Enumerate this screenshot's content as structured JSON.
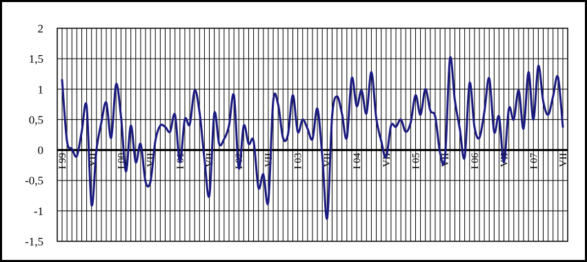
{
  "chart_data": {
    "type": "line",
    "title": "",
    "xlabel": "",
    "ylabel": "",
    "ylim": [
      -1.5,
      2
    ],
    "yticks": [
      -1.5,
      -1,
      -0.5,
      0,
      0.5,
      1,
      1.5,
      2
    ],
    "ytick_labels": [
      "-1,5",
      "-1",
      "-0,5",
      "0",
      "0,5",
      "1",
      "1,5",
      "2"
    ],
    "grid": true,
    "x_labels": [
      {
        "index": 0,
        "label": "I 99"
      },
      {
        "index": 6,
        "label": "VII"
      },
      {
        "index": 12,
        "label": "I 00"
      },
      {
        "index": 18,
        "label": "VII"
      },
      {
        "index": 24,
        "label": "I 01"
      },
      {
        "index": 30,
        "label": "VII"
      },
      {
        "index": 36,
        "label": "I 02"
      },
      {
        "index": 42,
        "label": "VII"
      },
      {
        "index": 48,
        "label": "I 03"
      },
      {
        "index": 54,
        "label": "VII"
      },
      {
        "index": 60,
        "label": "I 04"
      },
      {
        "index": 66,
        "label": "VII"
      },
      {
        "index": 72,
        "label": "I 05"
      },
      {
        "index": 78,
        "label": "VII"
      },
      {
        "index": 84,
        "label": "I 06"
      },
      {
        "index": 90,
        "label": "VII"
      },
      {
        "index": 96,
        "label": "I 07"
      },
      {
        "index": 102,
        "label": "VII"
      }
    ],
    "series": [
      {
        "color": "#1a1a80",
        "values": [
          1.15,
          0.15,
          0.02,
          -0.1,
          0.3,
          0.72,
          -0.9,
          0.0,
          0.45,
          0.78,
          0.2,
          1.08,
          0.55,
          -0.35,
          0.4,
          -0.2,
          0.1,
          -0.52,
          -0.52,
          0.15,
          0.4,
          0.38,
          0.3,
          0.58,
          -0.2,
          0.5,
          0.42,
          0.98,
          0.62,
          -0.15,
          -0.75,
          0.6,
          0.1,
          0.18,
          0.4,
          0.9,
          -0.3,
          0.4,
          0.1,
          0.15,
          -0.62,
          -0.4,
          -0.85,
          0.8,
          0.75,
          0.2,
          0.25,
          0.9,
          0.3,
          0.5,
          0.35,
          0.18,
          0.68,
          -0.1,
          -1.12,
          0.55,
          0.88,
          0.6,
          0.2,
          1.18,
          0.72,
          0.98,
          0.6,
          1.28,
          0.52,
          0.15,
          -0.12,
          0.4,
          0.38,
          0.5,
          0.3,
          0.45,
          0.9,
          0.58,
          1.0,
          0.65,
          0.55,
          -0.05,
          -0.12,
          1.5,
          0.82,
          0.35,
          -0.12,
          1.1,
          0.38,
          0.2,
          0.62,
          1.18,
          0.3,
          0.55,
          -0.2,
          0.68,
          0.5,
          0.98,
          0.35,
          1.28,
          0.5,
          1.38,
          0.8,
          0.58,
          0.88,
          1.2,
          0.38
        ]
      }
    ]
  }
}
